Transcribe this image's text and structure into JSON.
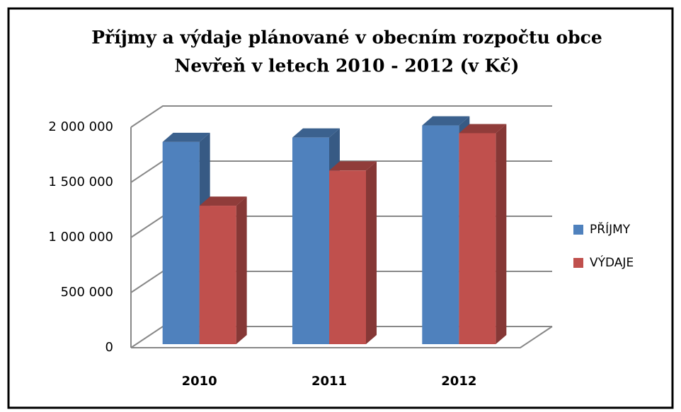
{
  "chart_data": {
    "type": "bar3d",
    "title": [
      "Příjmy a výdaje plánované v obecním rozpočtu obce",
      "Nevřeň v letech 2010 - 2012 (v Kč)"
    ],
    "categories": [
      "2010",
      "2011",
      "2012"
    ],
    "series": [
      {
        "name": "PŘÍJMY",
        "color": "#4f81bd",
        "values": [
          1840000,
          1880000,
          1990000
        ]
      },
      {
        "name": "VÝDAJE",
        "color": "#c0504d",
        "values": [
          1260000,
          1580000,
          1920000
        ]
      }
    ],
    "ylim": [
      0,
      2000000
    ],
    "yticks": [
      0,
      {
        "value": 500000,
        "label": "500 000"
      },
      {
        "value": 1000000,
        "label": "1 000 000"
      },
      {
        "value": 1500000,
        "label": "1 500 000"
      },
      {
        "value": 2000000,
        "label": "2 000 000"
      }
    ],
    "grid": true,
    "legend": "right"
  }
}
